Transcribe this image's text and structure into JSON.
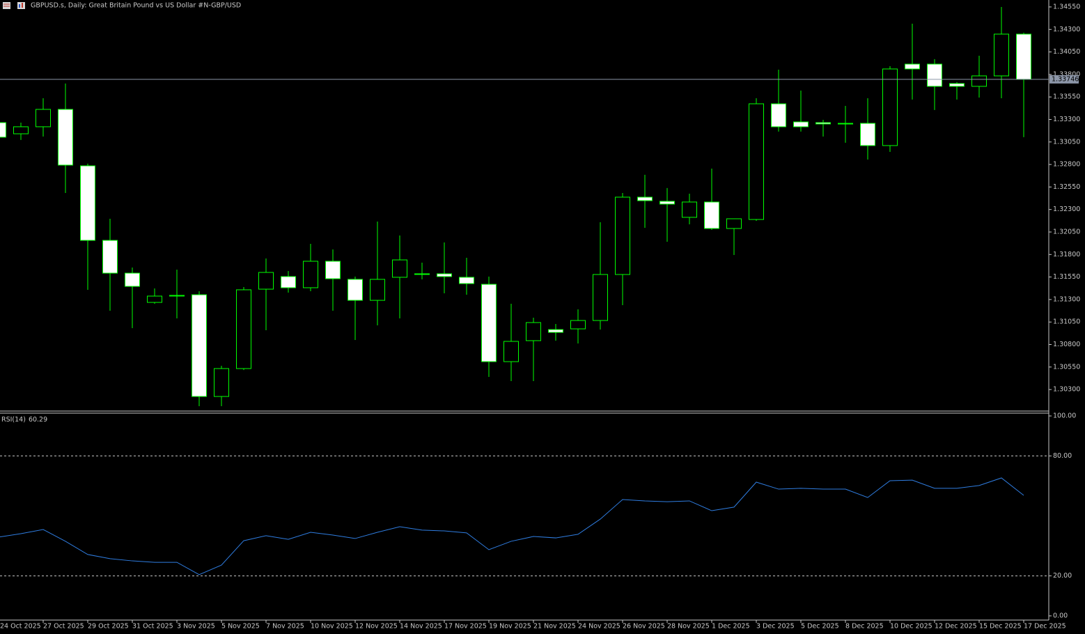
{
  "chart_data": [
    {
      "type": "candlestick",
      "title": "GBPUSD.s, Daily:  Great Britain Pound vs US Dollar #N-GBP/USD",
      "categories": [
        "24 Oct 2025",
        null,
        "27 Oct 2025",
        null,
        "29 Oct 2025",
        null,
        "31 Oct 2025",
        null,
        "3 Nov 2025",
        null,
        "5 Nov 2025",
        null,
        "7 Nov 2025",
        null,
        "10 Nov 2025",
        null,
        "12 Nov 2025",
        null,
        "14 Nov 2025",
        null,
        "17 Nov 2025",
        null,
        "19 Nov 2025",
        null,
        "21 Nov 2025",
        null,
        "24 Nov 2025",
        null,
        "26 Nov 2025",
        null,
        "28 Nov 2025",
        null,
        "1 Dec 2025",
        null,
        "3 Dec 2025",
        null,
        "5 Dec 2025",
        null,
        "8 Dec 2025",
        null,
        "10 Dec 2025",
        null,
        "12 Dec 2025",
        null,
        "15 Dec 2025",
        null,
        "17 Dec 2025"
      ],
      "open": [
        1.33265,
        1.33141,
        1.33219,
        1.33412,
        1.32785,
        1.31957,
        1.31593,
        1.31268,
        1.31338,
        1.31353,
        1.30223,
        1.30533,
        1.31415,
        1.31555,
        1.31431,
        1.31725,
        1.31524,
        1.31291,
        1.31547,
        1.31586,
        1.31586,
        1.31547,
        1.31469,
        1.3061,
        1.30843,
        1.30966,
        1.30974,
        1.31067,
        1.31578,
        1.32437,
        1.32391,
        1.32213,
        1.32383,
        1.32089,
        1.32189,
        1.33474,
        1.33273,
        1.33265,
        1.3325,
        1.33257,
        1.3301,
        1.33915,
        1.33915,
        1.33699,
        1.33668,
        1.33784,
        1.34248
      ],
      "high": [
        1.33296,
        1.33265,
        1.33536,
        1.33699,
        1.32809,
        1.32197,
        1.31655,
        1.31423,
        1.31632,
        1.31392,
        1.30564,
        1.31439,
        1.31756,
        1.31617,
        1.31918,
        1.31856,
        1.31555,
        1.32166,
        1.32011,
        1.31709,
        1.31934,
        1.31764,
        1.31555,
        1.31253,
        1.31098,
        1.31028,
        1.31191,
        1.32158,
        1.32483,
        1.32685,
        1.32538,
        1.32476,
        1.32754,
        1.32197,
        1.33536,
        1.33853,
        1.33621,
        1.33296,
        1.33451,
        1.33536,
        1.33892,
        1.34364,
        1.3397,
        1.33714,
        1.34008,
        1.3455,
        1.34264
      ],
      "low": [
        1.33079,
        1.33072,
        1.3311,
        1.32483,
        1.31408,
        1.31175,
        1.30982,
        1.31253,
        1.3109,
        1.30115,
        1.30115,
        1.30517,
        1.30959,
        1.31377,
        1.31392,
        1.31175,
        1.3085,
        1.31013,
        1.3109,
        1.31524,
        1.31369,
        1.31353,
        1.3044,
        1.30394,
        1.30394,
        1.30843,
        1.30812,
        1.30966,
        1.31237,
        1.32096,
        1.31942,
        1.32135,
        1.32073,
        1.31795,
        1.32174,
        1.33165,
        1.33165,
        1.3311,
        1.33041,
        1.32855,
        1.3294,
        1.33521,
        1.33405,
        1.33521,
        1.33544,
        1.33536,
        1.33103
      ],
      "close": [
        1.33103,
        1.33219,
        1.33412,
        1.32793,
        1.31957,
        1.31593,
        1.31446,
        1.31338,
        1.31346,
        1.30223,
        1.30533,
        1.31408,
        1.31601,
        1.31431,
        1.31725,
        1.31531,
        1.31291,
        1.31524,
        1.3174,
        1.31578,
        1.31555,
        1.31477,
        1.3061,
        1.30835,
        1.31044,
        1.30935,
        1.31067,
        1.31578,
        1.32437,
        1.32398,
        1.3236,
        1.32383,
        1.32089,
        1.32197,
        1.33474,
        1.33219,
        1.33219,
        1.3325,
        1.33257,
        1.3301,
        1.33861,
        1.33861,
        1.33668,
        1.33668,
        1.33784,
        1.34248,
        1.33746
      ],
      "up_color": "#000000",
      "down_color": "#ffffff",
      "line_color": "#00ff00",
      "current_price": {
        "value": 1.33746,
        "label": "1.33746"
      },
      "ylim": [
        1.30061,
        1.34627
      ],
      "yticks": [
        {
          "value": 1.3455,
          "label": "1.34550"
        },
        {
          "value": 1.343,
          "label": "1.34300"
        },
        {
          "value": 1.3405,
          "label": "1.34050"
        },
        {
          "value": 1.338,
          "label": "1.33800"
        },
        {
          "value": 1.3355,
          "label": "1.33550"
        },
        {
          "value": 1.333,
          "label": "1.33300"
        },
        {
          "value": 1.3305,
          "label": "1.33050"
        },
        {
          "value": 1.328,
          "label": "1.32800"
        },
        {
          "value": 1.3255,
          "label": "1.32550"
        },
        {
          "value": 1.323,
          "label": "1.32300"
        },
        {
          "value": 1.3205,
          "label": "1.32050"
        },
        {
          "value": 1.318,
          "label": "1.31800"
        },
        {
          "value": 1.3155,
          "label": "1.31550"
        },
        {
          "value": 1.313,
          "label": "1.31300"
        },
        {
          "value": 1.3105,
          "label": "1.31050"
        },
        {
          "value": 1.308,
          "label": "1.30800"
        },
        {
          "value": 1.3055,
          "label": "1.30550"
        },
        {
          "value": 1.303,
          "label": "1.30300"
        }
      ]
    },
    {
      "type": "line",
      "title": "RSI(14)",
      "values": [
        39.4,
        41.1,
        43.2,
        37.3,
        30.7,
        28.6,
        27.5,
        26.8,
        26.8,
        20.6,
        25.4,
        37.6,
        40.1,
        38.3,
        41.8,
        40.4,
        38.7,
        41.8,
        44.6,
        42.9,
        42.5,
        41.5,
        33.1,
        37.3,
        39.7,
        39.0,
        40.8,
        48.4,
        58.2,
        57.5,
        57.1,
        57.5,
        52.6,
        54.4,
        66.9,
        63.4,
        63.8,
        63.4,
        63.4,
        59.2,
        67.6,
        67.9,
        63.8,
        63.8,
        65.2,
        69.0,
        60.29
      ],
      "color": "#2f7de1",
      "ylim": [
        -2.1,
        101.4
      ],
      "yticks": [
        {
          "value": 100,
          "label": "100.00"
        },
        {
          "value": 80,
          "label": "80.00"
        },
        {
          "value": 20,
          "label": "20.00"
        },
        {
          "value": 0,
          "label": "0.00"
        }
      ],
      "levels": [
        80,
        20
      ]
    }
  ]
}
